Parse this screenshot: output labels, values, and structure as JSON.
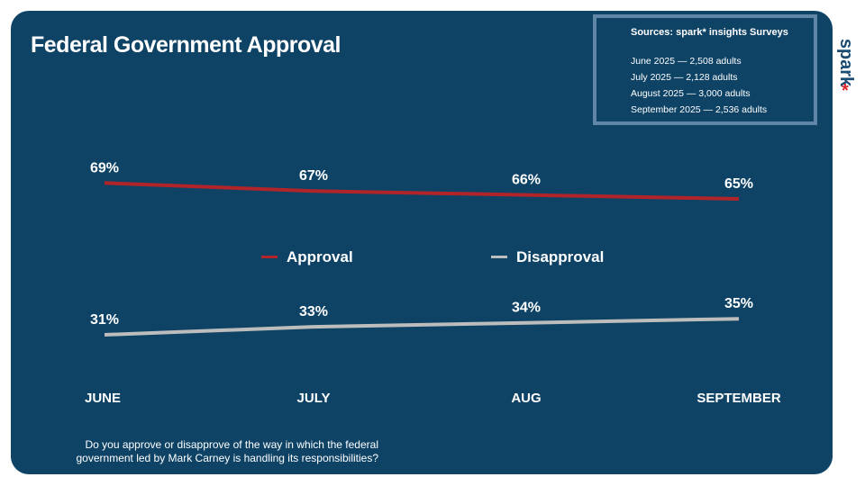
{
  "title": "Federal Government Approval",
  "sources": {
    "heading": "Sources: spark* insights Surveys",
    "lines": [
      "June 2025 — 2,508 adults",
      "July 2025 — 2,128 adults",
      "August 2025 — 3,000 adults",
      "September 2025 — 2,536 adults"
    ]
  },
  "brand": {
    "text": "spark",
    "star": "*"
  },
  "question": "Do you approve or disapprove of the way in which the federal government led by Mark Carney is handling its responsibilities?",
  "colors": {
    "background": "#0e4366",
    "approval": "#b0242a",
    "disapproval": "#bdbdbd",
    "brand": "#1b4c74",
    "star": "#d9252a"
  },
  "chart_data": {
    "type": "line",
    "title": "Federal Government Approval",
    "categories": [
      "JUNE",
      "JULY",
      "AUG",
      "SEPTEMBER"
    ],
    "series": [
      {
        "name": "Approval",
        "values": [
          69,
          67,
          66,
          65
        ],
        "labels": [
          "69%",
          "67%",
          "66%",
          "65%"
        ],
        "color": "#b0242a"
      },
      {
        "name": "Disapproval",
        "values": [
          31,
          33,
          34,
          35
        ],
        "labels": [
          "31%",
          "33%",
          "34%",
          "35%"
        ],
        "color": "#bdbdbd"
      }
    ],
    "legend": "center",
    "grid": false
  }
}
